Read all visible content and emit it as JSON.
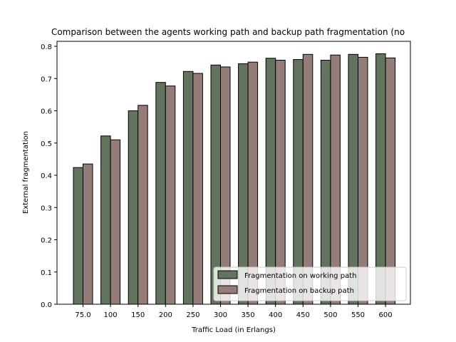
{
  "chart_data": {
    "type": "bar",
    "title": "Comparison between the agents working path and backup path fragmentation (no",
    "xlabel": "Traffic Load (in Erlangs)",
    "ylabel": "External fragmentation",
    "categories": [
      "75.0",
      "100",
      "150",
      "200",
      "250",
      "300",
      "350",
      "400",
      "450",
      "500",
      "550",
      "600"
    ],
    "ylim": [
      0,
      0.8
    ],
    "yticks": [
      "0.0",
      "0.1",
      "0.2",
      "0.3",
      "0.4",
      "0.5",
      "0.6",
      "0.7",
      "0.8"
    ],
    "grid": false,
    "legend_position": "bottom-right",
    "series": [
      {
        "name": "Fragmentation on working path",
        "color": "#63745e",
        "values": [
          0.424,
          0.522,
          0.6,
          0.688,
          0.722,
          0.742,
          0.746,
          0.763,
          0.759,
          0.757,
          0.775,
          0.777
        ]
      },
      {
        "name": "Fragmentation on backup path",
        "color": "#947d78",
        "values": [
          0.435,
          0.51,
          0.617,
          0.677,
          0.716,
          0.736,
          0.751,
          0.757,
          0.775,
          0.773,
          0.766,
          0.764
        ]
      }
    ]
  }
}
